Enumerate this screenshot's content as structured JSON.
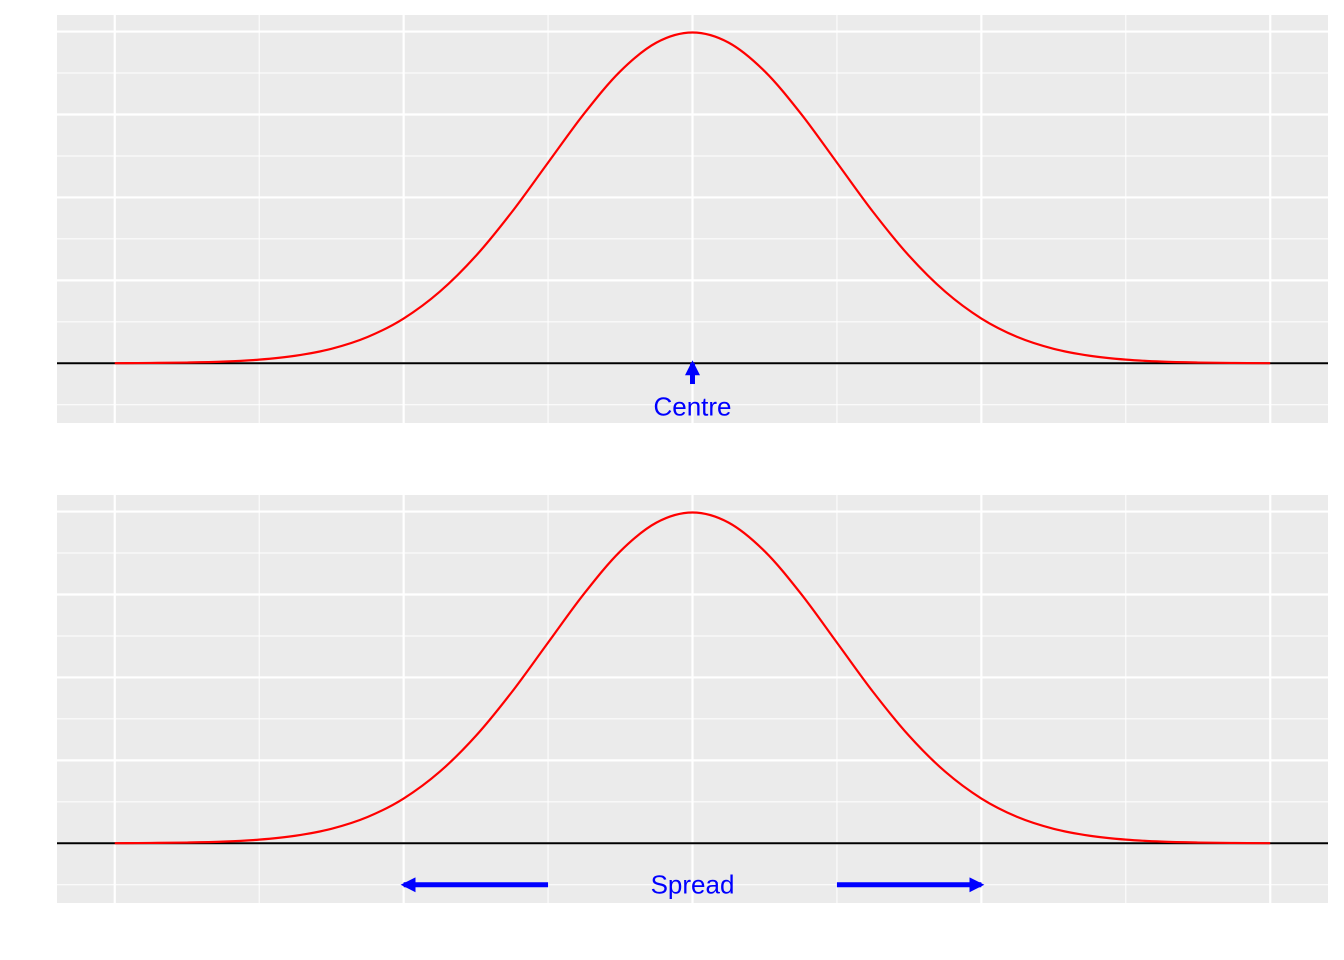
{
  "chart_data": [
    {
      "type": "line",
      "x": [
        -4,
        -3.75,
        -3.5,
        -3.25,
        -3,
        -2.75,
        -2.5,
        -2.25,
        -2,
        -1.75,
        -1.5,
        -1.25,
        -1,
        -0.75,
        -0.5,
        -0.25,
        0,
        0.25,
        0.5,
        0.75,
        1,
        1.25,
        1.5,
        1.75,
        2,
        2.25,
        2.5,
        2.75,
        3,
        3.25,
        3.5,
        3.75,
        4
      ],
      "series": [
        {
          "color": "#ff0000",
          "values": [
            0.0001,
            0.0004,
            0.0009,
            0.002,
            0.0044,
            0.0091,
            0.0175,
            0.0317,
            0.054,
            0.0863,
            0.1295,
            0.1826,
            0.242,
            0.3011,
            0.3521,
            0.3867,
            0.3989,
            0.3867,
            0.3521,
            0.3011,
            0.242,
            0.1826,
            0.1295,
            0.0863,
            0.054,
            0.0317,
            0.0175,
            0.0091,
            0.0044,
            0.002,
            0.0009,
            0.0004,
            0.0001
          ]
        }
      ],
      "xlim": [
        -4.4,
        4.4
      ],
      "ylim": [
        -0.072,
        0.42
      ],
      "xticks": [
        -4,
        -2,
        0,
        2,
        4
      ],
      "minor_xticks": [
        -3,
        -1,
        1,
        3
      ],
      "yticks": [
        0,
        0.1,
        0.2,
        0.3,
        0.4
      ],
      "minor_yticks": [
        -0.05,
        0.05,
        0.15,
        0.25,
        0.35
      ],
      "hline": 0,
      "arrows": [
        {
          "x0": 0,
          "y0": -0.025,
          "x1": 0,
          "y1": 0
        }
      ],
      "annotation": {
        "text": "Centre",
        "x": 0,
        "y": -0.052
      }
    },
    {
      "type": "line",
      "x": [
        -4,
        -3.75,
        -3.5,
        -3.25,
        -3,
        -2.75,
        -2.5,
        -2.25,
        -2,
        -1.75,
        -1.5,
        -1.25,
        -1,
        -0.75,
        -0.5,
        -0.25,
        0,
        0.25,
        0.5,
        0.75,
        1,
        1.25,
        1.5,
        1.75,
        2,
        2.25,
        2.5,
        2.75,
        3,
        3.25,
        3.5,
        3.75,
        4
      ],
      "series": [
        {
          "color": "#ff0000",
          "values": [
            0.0001,
            0.0004,
            0.0009,
            0.002,
            0.0044,
            0.0091,
            0.0175,
            0.0317,
            0.054,
            0.0863,
            0.1295,
            0.1826,
            0.242,
            0.3011,
            0.3521,
            0.3867,
            0.3989,
            0.3867,
            0.3521,
            0.3011,
            0.242,
            0.1826,
            0.1295,
            0.0863,
            0.054,
            0.0317,
            0.0175,
            0.0091,
            0.0044,
            0.002,
            0.0009,
            0.0004,
            0.0001
          ]
        }
      ],
      "xlim": [
        -4.4,
        4.4
      ],
      "ylim": [
        -0.072,
        0.42
      ],
      "xticks": [
        -4,
        -2,
        0,
        2,
        4
      ],
      "minor_xticks": [
        -3,
        -1,
        1,
        3
      ],
      "yticks": [
        0,
        0.1,
        0.2,
        0.3,
        0.4
      ],
      "minor_yticks": [
        -0.05,
        0.05,
        0.15,
        0.25,
        0.35
      ],
      "hline": 0,
      "arrows": [
        {
          "x0": -1,
          "y0": -0.05,
          "x1": -2,
          "y1": -0.05
        },
        {
          "x0": 1,
          "y0": -0.05,
          "x1": 2,
          "y1": -0.05
        }
      ],
      "annotation": {
        "text": "Spread",
        "x": 0,
        "y": -0.05
      }
    }
  ]
}
